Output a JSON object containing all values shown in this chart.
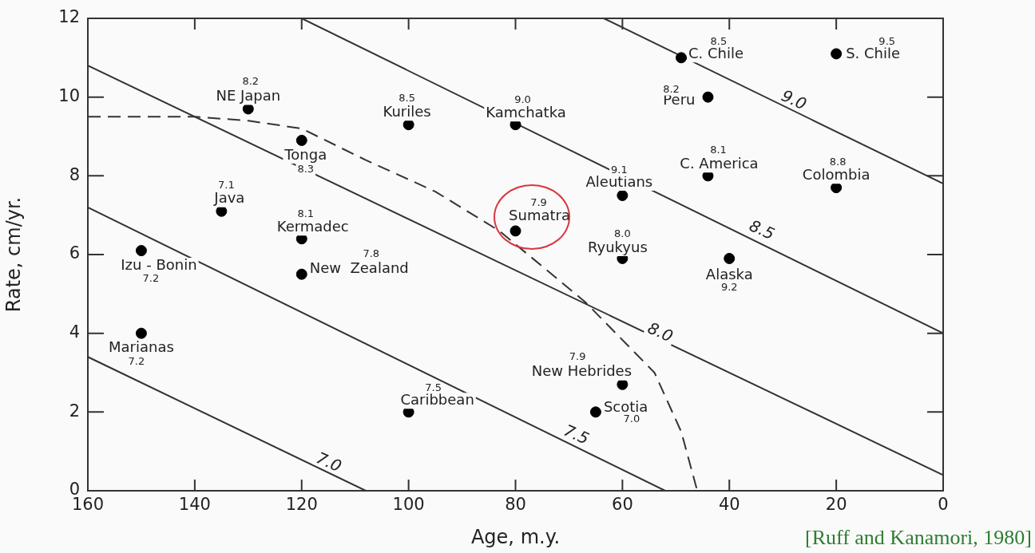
{
  "chart_data": {
    "type": "scatter",
    "xlabel": "Age, m.y.",
    "ylabel": "Rate, cm/yr.",
    "xlim": [
      160,
      0
    ],
    "xticks": [
      160,
      140,
      120,
      100,
      80,
      60,
      40,
      20,
      0
    ],
    "ylim": [
      0,
      12
    ],
    "yticks": [
      0,
      2,
      4,
      6,
      8,
      10,
      12
    ],
    "series": [
      {
        "type": "scatter",
        "color": "#000000",
        "marker": "circle",
        "x": [
          130,
          120,
          135,
          120,
          120,
          150,
          150,
          100,
          80,
          80,
          49,
          20,
          44,
          44,
          20,
          60,
          60,
          40,
          60,
          65,
          100
        ],
        "values": [
          9.7,
          8.9,
          7.1,
          6.4,
          5.5,
          6.1,
          4.0,
          9.3,
          9.3,
          6.6,
          11.0,
          11.1,
          10.0,
          8.0,
          7.7,
          7.5,
          5.9,
          5.9,
          2.7,
          2.0,
          2.0
        ]
      },
      {
        "type": "line",
        "color": "#333333",
        "marker": "none",
        "line_style": "solid",
        "x": [
          160,
          108
        ],
        "values": [
          3.4,
          0
        ]
      },
      {
        "type": "line",
        "color": "#333333",
        "marker": "none",
        "line_style": "solid",
        "x": [
          160,
          52
        ],
        "values": [
          7.2,
          0
        ]
      },
      {
        "type": "line",
        "color": "#333333",
        "marker": "none",
        "line_style": "solid",
        "x": [
          160,
          0
        ],
        "values": [
          10.8,
          0.4
        ]
      },
      {
        "type": "line",
        "color": "#333333",
        "marker": "none",
        "line_style": "solid",
        "x": [
          120,
          0
        ],
        "values": [
          12,
          4.0
        ]
      },
      {
        "type": "line",
        "color": "#333333",
        "marker": "none",
        "line_style": "solid",
        "x": [
          63.5,
          0
        ],
        "values": [
          12,
          7.8
        ]
      },
      {
        "type": "line",
        "color": "#333333",
        "marker": "none",
        "line_style": "dashed",
        "x": [
          160,
          140,
          130,
          120,
          108,
          95,
          83,
          67,
          54,
          49,
          46
        ],
        "values": [
          9.5,
          9.5,
          9.4,
          9.2,
          8.4,
          7.6,
          6.6,
          4.8,
          3.0,
          1.5,
          0
        ]
      }
    ],
    "annotations": [
      {
        "text": "NE Japan",
        "x": 130,
        "y": 9.7
      },
      {
        "text": "8.2",
        "x": 130,
        "y": 9.7
      },
      {
        "text": "Tonga",
        "x": 120,
        "y": 8.9
      },
      {
        "text": "8.3",
        "x": 120,
        "y": 8.9
      },
      {
        "text": "Java",
        "x": 135,
        "y": 7.1
      },
      {
        "text": "7.1",
        "x": 135,
        "y": 7.1
      },
      {
        "text": "Kermadec",
        "x": 120,
        "y": 6.4
      },
      {
        "text": "8.1",
        "x": 120,
        "y": 6.4
      },
      {
        "text": "New  Zealand",
        "x": 120,
        "y": 5.5
      },
      {
        "text": "7.8",
        "x": 107,
        "y": 6.0
      },
      {
        "text": "Izu - Bonin",
        "x": 150,
        "y": 6.1
      },
      {
        "text": "7.2",
        "x": 150,
        "y": 6.1
      },
      {
        "text": "Marianas",
        "x": 150,
        "y": 4.0
      },
      {
        "text": "7.2",
        "x": 150,
        "y": 4.0
      },
      {
        "text": "Kuriles",
        "x": 100,
        "y": 9.3
      },
      {
        "text": "8.5",
        "x": 100,
        "y": 9.3
      },
      {
        "text": "Kamchatka",
        "x": 80,
        "y": 9.3
      },
      {
        "text": "9.0",
        "x": 80,
        "y": 9.3
      },
      {
        "text": "Sumatra",
        "x": 80,
        "y": 6.6
      },
      {
        "text": "7.9",
        "x": 80,
        "y": 6.6
      },
      {
        "text": "C. Chile",
        "x": 49,
        "y": 11.0
      },
      {
        "text": "8.5",
        "x": 42,
        "y": 11.4
      },
      {
        "text": "S. Chile",
        "x": 20,
        "y": 11.1
      },
      {
        "text": "9.5",
        "x": 10.5,
        "y": 11.4
      },
      {
        "text": "Peru",
        "x": 44,
        "y": 10.0
      },
      {
        "text": "8.2",
        "x": 44,
        "y": 10.0
      },
      {
        "text": "C. America",
        "x": 44,
        "y": 8.0
      },
      {
        "text": "8.1",
        "x": 44,
        "y": 8.0
      },
      {
        "text": "Colombia",
        "x": 20,
        "y": 7.7
      },
      {
        "text": "8.8",
        "x": 20,
        "y": 7.7
      },
      {
        "text": "Aleutians",
        "x": 60,
        "y": 7.5
      },
      {
        "text": "9.1",
        "x": 60,
        "y": 7.5
      },
      {
        "text": "Ryukyus",
        "x": 60,
        "y": 5.9
      },
      {
        "text": "8.0",
        "x": 60,
        "y": 5.9
      },
      {
        "text": "Alaska",
        "x": 40,
        "y": 5.9
      },
      {
        "text": "9.2",
        "x": 40,
        "y": 5.9
      },
      {
        "text": "New Hebrides",
        "x": 60,
        "y": 2.7
      },
      {
        "text": "7.9",
        "x": 68.4,
        "y": 3.4
      },
      {
        "text": "Scotia",
        "x": 65,
        "y": 2.0
      },
      {
        "text": "7.0",
        "x": 65,
        "y": 2.0
      },
      {
        "text": "Caribbean",
        "x": 100,
        "y": 2.0
      },
      {
        "text": "7.5",
        "x": 100,
        "y": 2.0
      },
      {
        "text": "7.0",
        "x": 115,
        "y": 0.7
      },
      {
        "text": "7.5",
        "x": 68.7,
        "y": 1.4
      },
      {
        "text": "8.0",
        "x": 53,
        "y": 4.0
      },
      {
        "text": "8.5",
        "x": 34,
        "y": 6.6
      },
      {
        "text": "9.0",
        "x": 28,
        "y": 9.9
      },
      "[Ruff and Kanamori, 1980]"
    ]
  }
}
